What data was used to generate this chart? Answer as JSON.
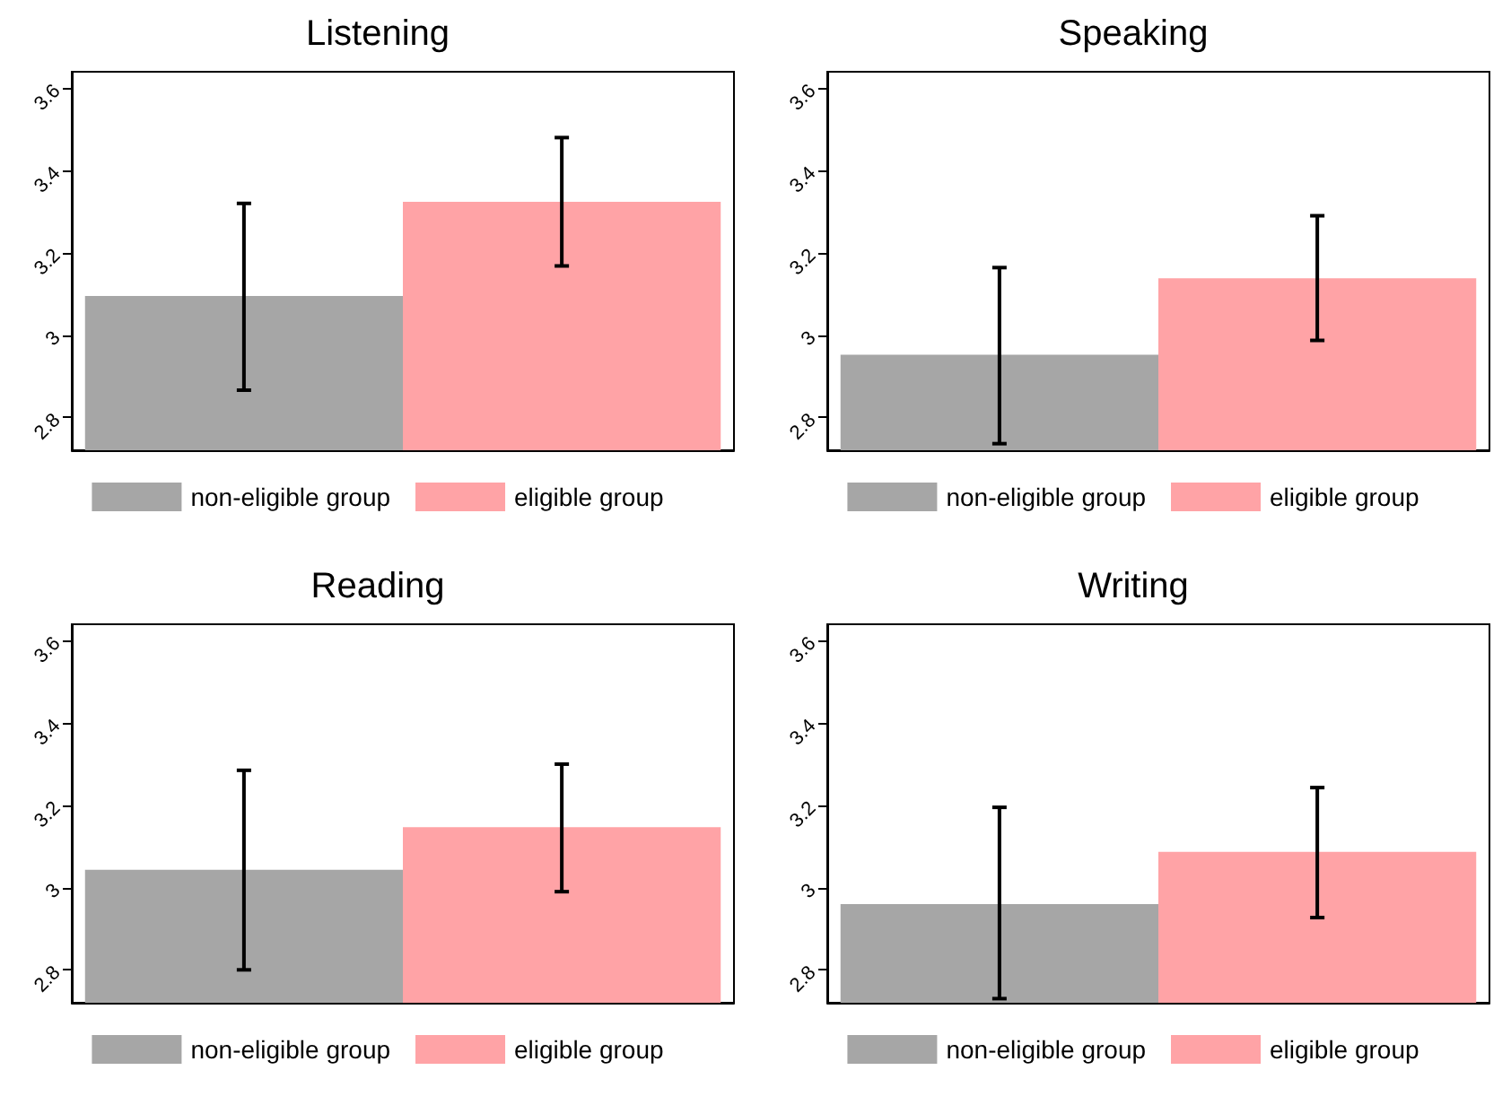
{
  "chart_data": [
    {
      "type": "bar",
      "title": "Listening",
      "categories": [
        null
      ],
      "ylim": [
        2.72,
        3.64
      ],
      "yticks": [
        2.8,
        3,
        3.2,
        3.4,
        3.6
      ],
      "grid": false,
      "legend": "bottom",
      "series": [
        {
          "name": "non-eligible group",
          "color": "#a6a6a6",
          "values": [
            3.095
          ],
          "errors": [
            [
              2.866,
              3.32
            ]
          ]
        },
        {
          "name": "eligible group",
          "color": "#ffa3a6",
          "values": [
            3.324
          ],
          "errors": [
            [
              3.168,
              3.48
            ]
          ]
        }
      ]
    },
    {
      "type": "bar",
      "title": "Speaking",
      "categories": [
        null
      ],
      "ylim": [
        2.72,
        3.64
      ],
      "yticks": [
        2.8,
        3,
        3.2,
        3.4,
        3.6
      ],
      "grid": false,
      "legend": "bottom",
      "series": [
        {
          "name": "non-eligible group",
          "color": "#a6a6a6",
          "values": [
            2.952
          ],
          "errors": [
            [
              2.736,
              3.164
            ]
          ]
        },
        {
          "name": "eligible group",
          "color": "#ffa3a6",
          "values": [
            3.138
          ],
          "errors": [
            [
              2.987,
              3.29
            ]
          ]
        }
      ]
    },
    {
      "type": "bar",
      "title": "Reading",
      "categories": [
        null
      ],
      "ylim": [
        2.72,
        3.64
      ],
      "yticks": [
        2.8,
        3,
        3.2,
        3.4,
        3.6
      ],
      "grid": false,
      "legend": "bottom",
      "series": [
        {
          "name": "non-eligible group",
          "color": "#a6a6a6",
          "values": [
            3.043
          ],
          "errors": [
            [
              2.8,
              3.285
            ]
          ]
        },
        {
          "name": "eligible group",
          "color": "#ffa3a6",
          "values": [
            3.147
          ],
          "errors": [
            [
              2.99,
              3.3
            ]
          ]
        }
      ]
    },
    {
      "type": "bar",
      "title": "Writing",
      "categories": [
        null
      ],
      "ylim": [
        2.72,
        3.64
      ],
      "yticks": [
        2.8,
        3,
        3.2,
        3.4,
        3.6
      ],
      "grid": false,
      "legend": "bottom",
      "series": [
        {
          "name": "non-eligible group",
          "color": "#a6a6a6",
          "values": [
            2.96
          ],
          "errors": [
            [
              2.73,
              3.195
            ]
          ]
        },
        {
          "name": "eligible group",
          "color": "#ffa3a6",
          "values": [
            3.087
          ],
          "errors": [
            [
              2.927,
              3.243
            ]
          ]
        }
      ]
    }
  ]
}
